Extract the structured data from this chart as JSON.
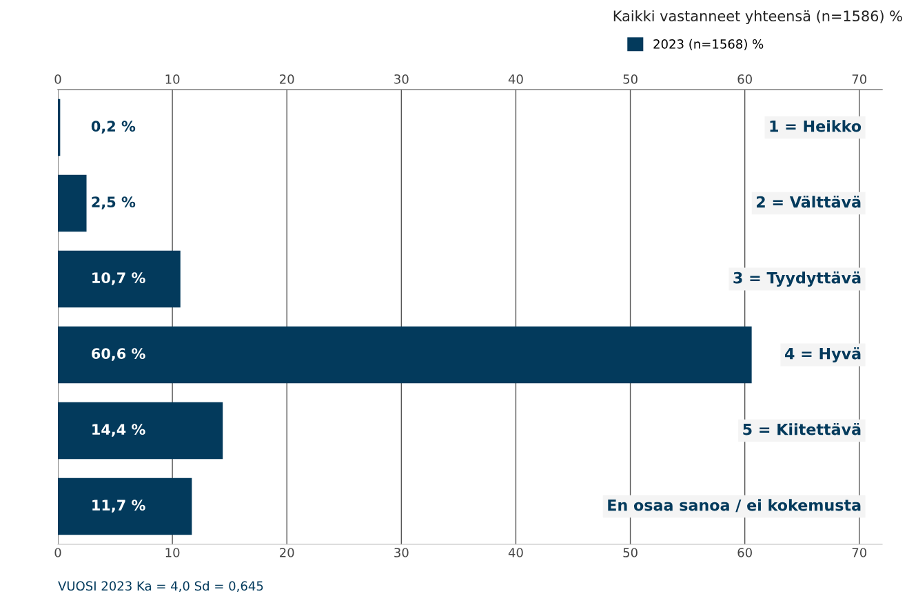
{
  "chart_data": {
    "type": "bar",
    "orientation": "horizontal",
    "title": "Kaikki vastanneet yhteensä (n=1586) %",
    "categories": [
      "1 = Heikko",
      "2 = Välttävä",
      "3 = Tyydyttävä",
      "4 = Hyvä",
      "5 = Kiitettävä",
      "En osaa sanoa / ei kokemusta"
    ],
    "series": [
      {
        "name": "2023 (n=1568) %",
        "color": "#033a5c",
        "values": [
          0.2,
          2.5,
          10.7,
          60.6,
          14.4,
          11.7
        ],
        "value_labels": [
          "0,2 %",
          "2,5 %",
          "10,7 %",
          "60,6 %",
          "14,4 %",
          "11,7 %"
        ]
      }
    ],
    "xlim": [
      0,
      72
    ],
    "xticks": [
      0,
      10,
      20,
      30,
      40,
      50,
      60,
      70
    ],
    "x2lim": [
      0,
      72
    ],
    "x2ticks": [
      0,
      10,
      20,
      30,
      40,
      50,
      60,
      70
    ],
    "grid": "x",
    "legend": "top right",
    "annotations": [
      "VUOSI 2023 Ka = 4,0 Sd = 0,645"
    ]
  }
}
